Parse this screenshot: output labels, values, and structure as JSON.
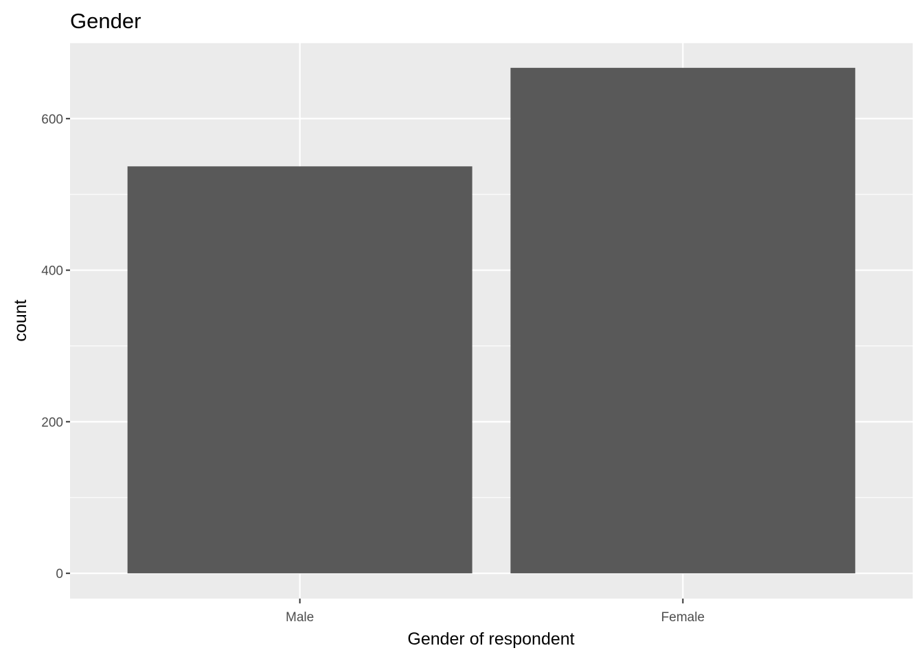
{
  "chart_data": {
    "type": "bar",
    "title": "Gender",
    "xlabel": "Gender of respondent",
    "ylabel": "count",
    "categories": [
      "Male",
      "Female"
    ],
    "values": [
      537,
      667
    ],
    "ylim": [
      -33.35,
      700.35
    ],
    "yticks": [
      0,
      200,
      400,
      600
    ],
    "ytick_labels": [
      "0",
      "200",
      "400",
      "600"
    ],
    "grid": true,
    "legend": "none",
    "colors": {
      "bar": "#595959",
      "panel": "#ebebeb",
      "grid": "#ffffff"
    }
  }
}
